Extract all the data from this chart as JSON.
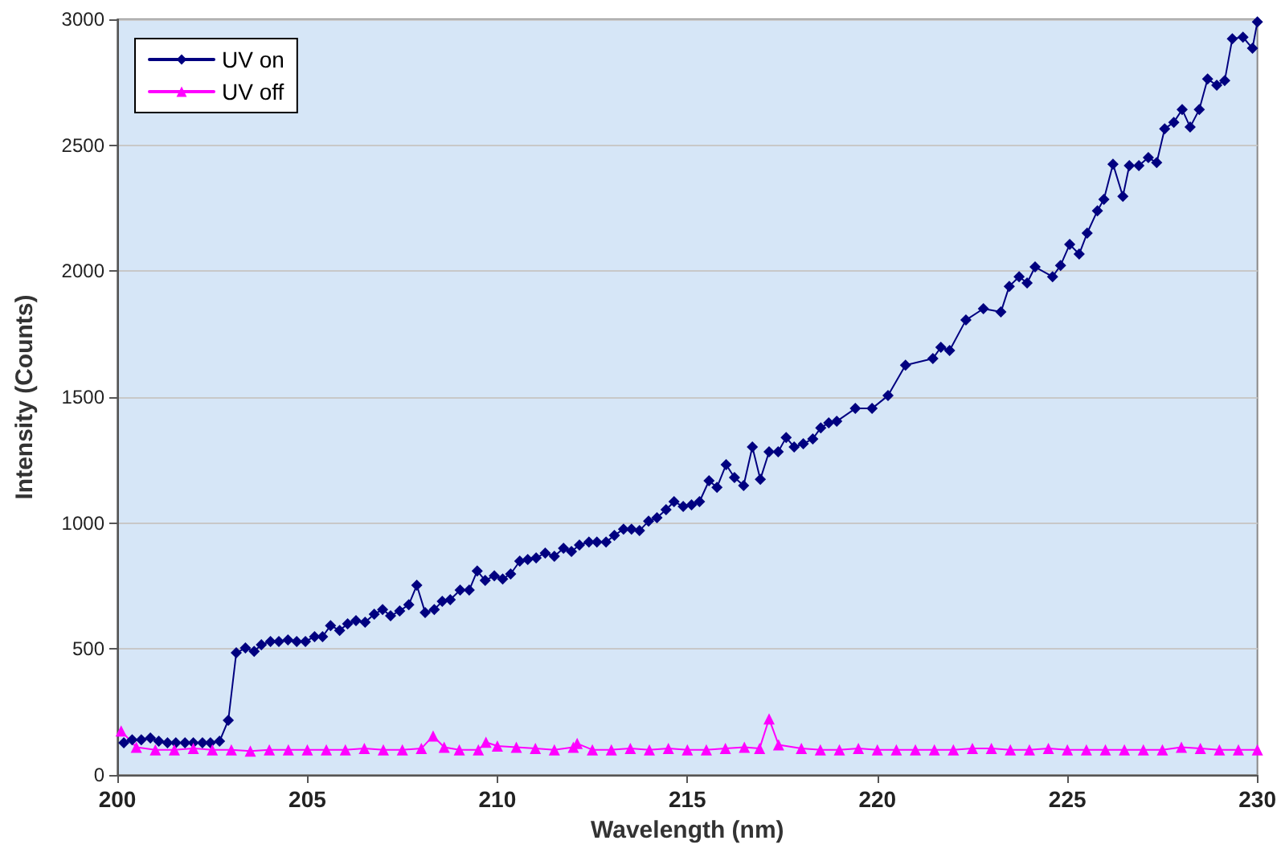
{
  "chart_data": {
    "type": "line",
    "xlabel": "Wavelength (nm)",
    "ylabel": "Intensity (Counts)",
    "xlim": [
      200,
      230
    ],
    "xticks": [
      200,
      205,
      210,
      215,
      220,
      225,
      230
    ],
    "ylim": [
      0,
      3000
    ],
    "yticks": [
      0,
      500,
      1000,
      1500,
      2000,
      2500,
      3000
    ],
    "grid": "y",
    "legend": "top left",
    "line_style": "solid",
    "series": [
      {
        "name": "UV on",
        "color": "#000080",
        "marker": "diamond",
        "x": [
          200.17,
          200.39,
          200.63,
          200.87,
          201.09,
          201.32,
          201.54,
          201.78,
          202.0,
          202.24,
          202.45,
          202.69,
          202.92,
          203.13,
          203.37,
          203.6,
          203.79,
          204.03,
          204.25,
          204.49,
          204.72,
          204.95,
          205.19,
          205.4,
          205.61,
          205.85,
          206.06,
          206.28,
          206.52,
          206.76,
          206.98,
          207.19,
          207.43,
          207.67,
          207.88,
          208.1,
          208.34,
          208.55,
          208.76,
          209.02,
          209.26,
          209.47,
          209.68,
          209.92,
          210.14,
          210.35,
          210.59,
          210.8,
          211.02,
          211.26,
          211.5,
          211.74,
          211.95,
          212.16,
          212.41,
          212.62,
          212.86,
          213.08,
          213.32,
          213.53,
          213.74,
          213.98,
          214.2,
          214.44,
          214.65,
          214.89,
          215.11,
          215.32,
          215.57,
          215.78,
          216.02,
          216.24,
          216.48,
          216.71,
          216.92,
          217.15,
          217.39,
          217.6,
          217.81,
          218.05,
          218.3,
          218.51,
          218.72,
          218.93,
          219.42,
          219.86,
          220.28,
          220.74,
          221.46,
          221.67,
          221.9,
          222.33,
          222.79,
          223.25,
          223.47,
          223.73,
          223.94,
          224.15,
          224.61,
          224.82,
          225.06,
          225.31,
          225.52,
          225.79,
          225.96,
          226.2,
          226.46,
          226.63,
          226.88,
          227.13,
          227.35,
          227.56,
          227.8,
          228.02,
          228.23,
          228.47,
          228.69,
          228.93,
          229.14,
          229.34,
          229.62,
          229.87,
          230
        ],
        "values": [
          128,
          140,
          140,
          147,
          134,
          128,
          128,
          128,
          128,
          128,
          128,
          134,
          217,
          485,
          504,
          491,
          517,
          530,
          530,
          536,
          530,
          530,
          549,
          549,
          593,
          574,
          600,
          613,
          606,
          638,
          657,
          632,
          651,
          676,
          753,
          645,
          657,
          689,
          696,
          734,
          734,
          810,
          772,
          791,
          778,
          798,
          849,
          855,
          862,
          881,
          868,
          900,
          887,
          913,
          925,
          925,
          925,
          951,
          976,
          976,
          970,
          1008,
          1021,
          1053,
          1085,
          1066,
          1072,
          1085,
          1168,
          1142,
          1232,
          1181,
          1149,
          1302,
          1174,
          1283,
          1283,
          1340,
          1302,
          1315,
          1334,
          1378,
          1398,
          1404,
          1455,
          1455,
          1506,
          1627,
          1653,
          1698,
          1685,
          1806,
          1851,
          1838,
          1940,
          1978,
          1953,
          2017,
          1978,
          2023,
          2106,
          2068,
          2151,
          2240,
          2285,
          2425,
          2297,
          2419,
          2419,
          2451,
          2431,
          2565,
          2591,
          2642,
          2572,
          2642,
          2763,
          2738,
          2757,
          2923,
          2929,
          2885,
          2990
        ]
      },
      {
        "name": "UV off",
        "color": "#ff00ff",
        "marker": "triangle",
        "x": [
          200.1,
          200.5,
          201,
          201.5,
          202,
          202.5,
          203,
          203.5,
          204,
          204.5,
          205,
          205.5,
          206,
          206.5,
          207,
          207.5,
          208,
          208.31,
          208.6,
          209,
          209.5,
          209.7,
          210,
          210.5,
          211,
          211.5,
          212,
          212.1,
          212.5,
          213,
          213.5,
          214,
          214.5,
          215,
          215.5,
          216,
          216.5,
          216.9,
          217.15,
          217.4,
          218,
          218.5,
          219,
          219.5,
          220,
          220.5,
          221,
          221.5,
          222,
          222.5,
          223,
          223.5,
          224,
          224.5,
          225,
          225.5,
          226,
          226.5,
          227,
          227.5,
          228,
          228.5,
          229,
          229.5,
          230
        ],
        "values": [
          175,
          110,
          100,
          100,
          105,
          100,
          100,
          95,
          100,
          100,
          100,
          100,
          100,
          105,
          100,
          100,
          105,
          155,
          110,
          100,
          100,
          130,
          115,
          110,
          105,
          100,
          110,
          125,
          100,
          100,
          105,
          100,
          105,
          100,
          100,
          105,
          110,
          105,
          223,
          120,
          105,
          100,
          100,
          105,
          100,
          100,
          100,
          100,
          100,
          105,
          105,
          100,
          100,
          105,
          100,
          100,
          100,
          100,
          100,
          100,
          110,
          105,
          100,
          100,
          100
        ]
      }
    ]
  }
}
